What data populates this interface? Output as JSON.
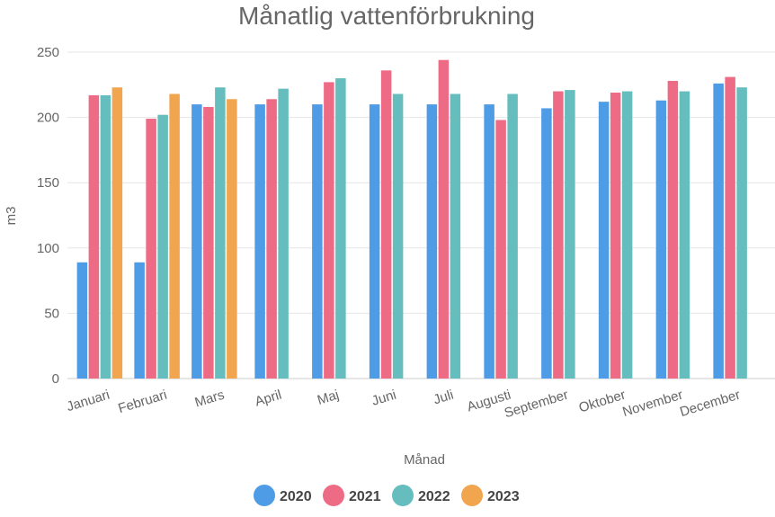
{
  "chart_data": {
    "type": "bar",
    "title": "Månatlig vattenförbrukning",
    "xlabel": "Månad",
    "ylabel": "m3",
    "ylim": [
      0,
      250
    ],
    "yticks": [
      0,
      50,
      100,
      150,
      200,
      250
    ],
    "grid": true,
    "legend_position": "bottom",
    "categories": [
      "Januari",
      "Februari",
      "Mars",
      "April",
      "Maj",
      "Juni",
      "Juli",
      "Augusti",
      "September",
      "Oktober",
      "November",
      "December"
    ],
    "series": [
      {
        "name": "2020",
        "color": "#4e9be6",
        "values": [
          89,
          89,
          210,
          210,
          210,
          210,
          210,
          210,
          207,
          212,
          213,
          226
        ]
      },
      {
        "name": "2021",
        "color": "#ee6b85",
        "values": [
          217,
          199,
          208,
          214,
          227,
          236,
          244,
          198,
          220,
          219,
          228,
          231
        ]
      },
      {
        "name": "2022",
        "color": "#66bdbd",
        "values": [
          217,
          202,
          223,
          222,
          230,
          218,
          218,
          218,
          221,
          220,
          220,
          223
        ]
      },
      {
        "name": "2023",
        "color": "#f1a54e",
        "values": [
          223,
          218,
          214,
          null,
          null,
          null,
          null,
          null,
          null,
          null,
          null,
          null
        ]
      }
    ]
  }
}
